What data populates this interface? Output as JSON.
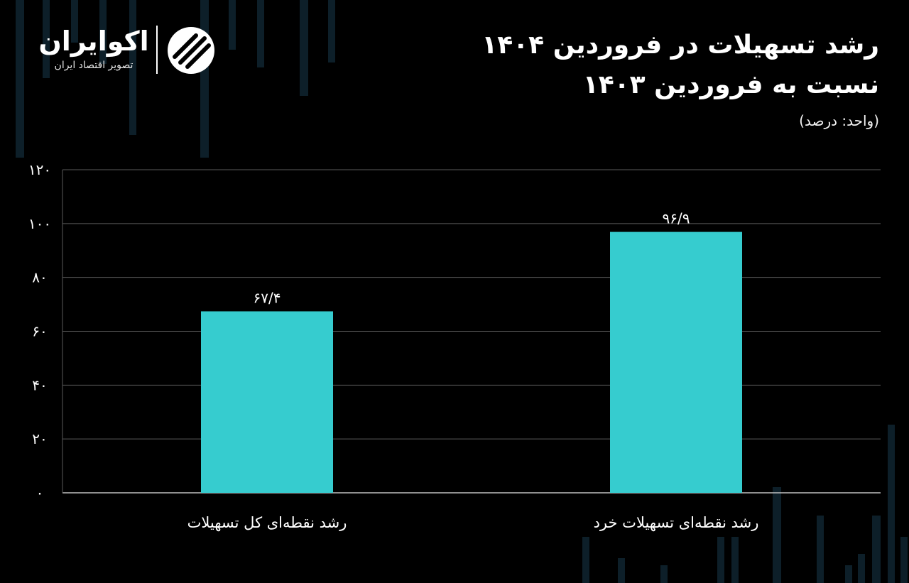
{
  "brand": {
    "name": "اکوایران",
    "tagline": "تصویر اقتصاد ایران"
  },
  "header": {
    "title_line1": "رشد تسهیلات در فروردین ۱۴۰۴",
    "title_line2": "نسبت به فروردین ۱۴۰۳",
    "unit": "(واحد: درصد)"
  },
  "colors": {
    "background": "#000000",
    "bar": "#36CCCF",
    "grid": "#5a5a5a",
    "text": "#ffffff"
  },
  "chart_data": {
    "type": "bar",
    "title": "رشد تسهیلات در فروردین ۱۴۰۴ نسبت به فروردین ۱۴۰۳",
    "xlabel": "",
    "ylabel": "",
    "ylim": [
      0,
      120
    ],
    "yticks": [
      0,
      20,
      40,
      60,
      80,
      100,
      120
    ],
    "ytick_labels": [
      "۰",
      "۲۰",
      "۴۰",
      "۶۰",
      "۸۰",
      "۱۰۰",
      "۱۲۰"
    ],
    "grid": true,
    "legend": "none",
    "categories": [
      "رشد نقطه‌ای کل تسهیلات",
      "رشد نقطه‌ای تسهیلات خرد"
    ],
    "values": [
      67.4,
      96.9
    ],
    "value_labels": [
      "۶۷/۴",
      "۹۶/۹"
    ]
  }
}
